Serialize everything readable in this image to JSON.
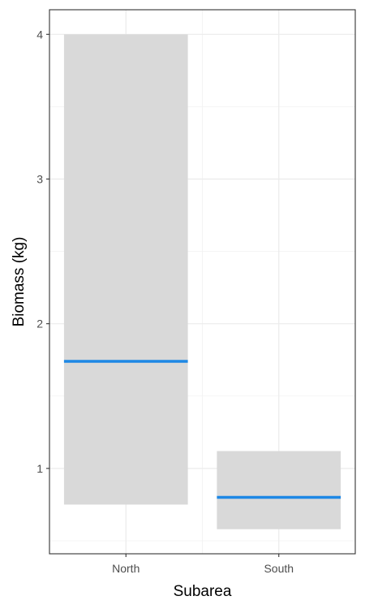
{
  "chart_data": {
    "type": "crossbar",
    "title": "",
    "xlabel": "Subarea",
    "ylabel": "Biomass (kg)",
    "categories": [
      "North",
      "South"
    ],
    "bars": [
      {
        "category": "North",
        "lower": 0.75,
        "middle": 1.74,
        "upper": 4.0
      },
      {
        "category": "South",
        "lower": 0.58,
        "middle": 0.8,
        "upper": 1.12
      }
    ],
    "ylim": [
      0.41,
      4.17
    ],
    "y_ticks": [
      1,
      2,
      3,
      4
    ],
    "y_tick_labels": [
      "1",
      "2",
      "3",
      "4"
    ],
    "grid": true,
    "legend": "none",
    "colors": {
      "box_fill": "#d9d9d9",
      "middle_line": "#1e88e5",
      "grid_major": "#ebebeb",
      "grid_minor": "#f2f2f2",
      "panel_border": "#333333"
    }
  }
}
